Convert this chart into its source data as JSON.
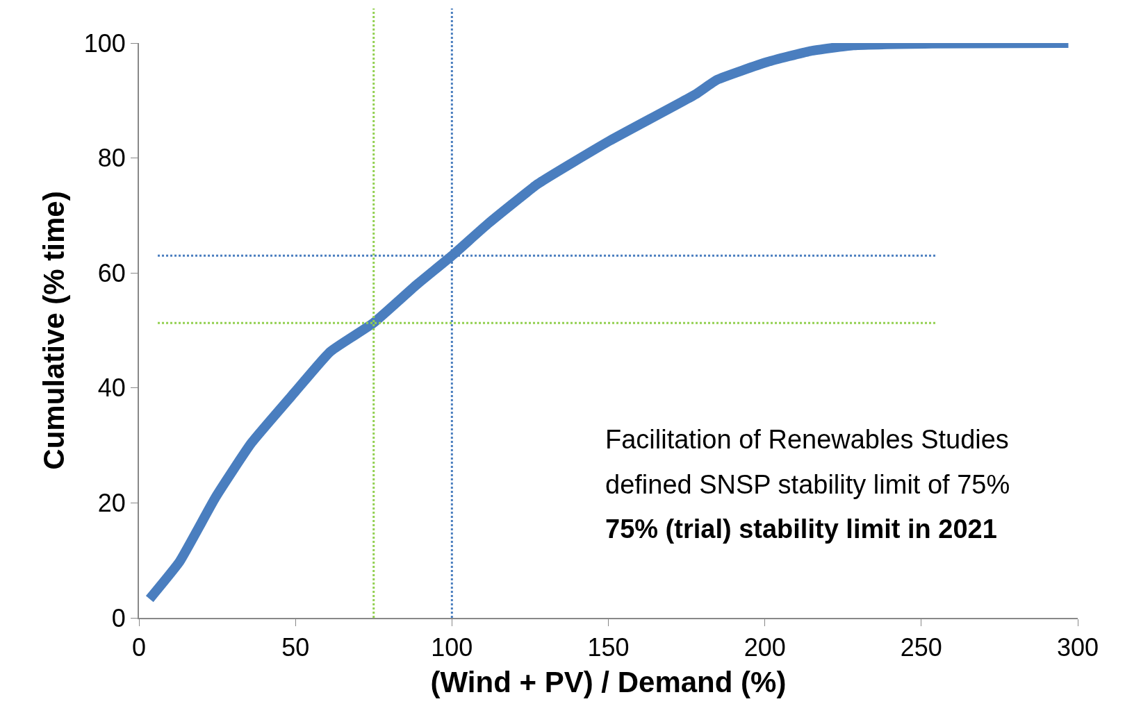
{
  "chart_data": {
    "type": "line",
    "xlabel": "(Wind + PV) / Demand (%)",
    "ylabel": "Cumulative (% time)",
    "x": [
      3.4,
      13,
      24.5,
      35.9,
      49.7,
      61.1,
      74.9,
      88.6,
      100,
      111.6,
      127.5,
      150.4,
      177.9,
      184.7,
      200.8,
      214.5,
      228.3,
      253.5,
      297
    ],
    "series": [
      {
        "color": "#4a7ebf",
        "values": [
          3.3,
          9.8,
          21.0,
          30.4,
          39.2,
          46.3,
          51.3,
          57.9,
          63,
          68.6,
          75.5,
          83,
          91.1,
          93.6,
          96.7,
          98.6,
          99.6,
          99.9,
          100
        ]
      }
    ],
    "xlim": [
      0,
      300
    ],
    "xticks": [
      0,
      50,
      100,
      150,
      200,
      250,
      300
    ],
    "ylim": [
      0,
      100
    ],
    "yticks": [
      0,
      20,
      40,
      60,
      80,
      100
    ],
    "legend": false,
    "marker": "none",
    "line_style": "solid",
    "ref_lines": [
      {
        "axis": "x",
        "value": 75,
        "color": "#92d050",
        "line_style": "dotted"
      },
      {
        "axis": "x",
        "value": 100,
        "color": "#4a7ebf",
        "line_style": "dotted"
      },
      {
        "axis": "y",
        "value": 63,
        "color": "#4a7ebf",
        "line_style": "dotted"
      },
      {
        "axis": "y",
        "value": 51.3,
        "color": "#92d050",
        "line_style": "dotted"
      }
    ],
    "annotations": [
      "Facilitation of Renewables Studies",
      "defined SNSP stability limit of 75%",
      "75% (trial) stability limit in 2021"
    ]
  }
}
